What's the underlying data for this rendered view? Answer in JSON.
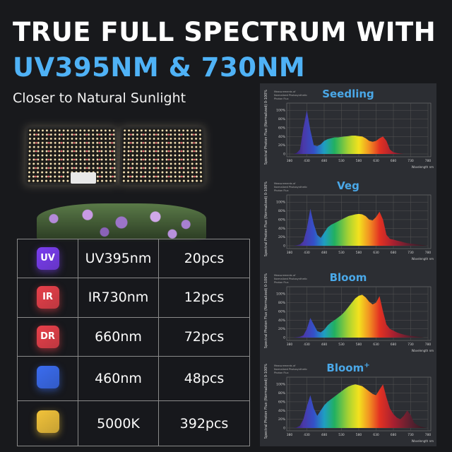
{
  "headline": {
    "line1": "TRUE FULL SPECTRUM WITH",
    "line2": "UV395NM & 730NM",
    "subtitle": "Closer to Natural Sunlight"
  },
  "colors": {
    "accent": "#4fb2f6",
    "chart_title": "#4aa8e8",
    "panel": "#2c2e33"
  },
  "table": [
    {
      "icon": "uv-chip-icon",
      "badge": "UV",
      "color": "#7a3df0",
      "name": "UV395nm",
      "count": "20pcs"
    },
    {
      "icon": "ir-chip-icon",
      "badge": "IR",
      "color": "#e8404a",
      "name": "IR730nm",
      "count": "12pcs"
    },
    {
      "icon": "dr-chip-icon",
      "badge": "DR",
      "color": "#e8404a",
      "name": "660nm",
      "count": "72pcs"
    },
    {
      "icon": "blue-chip-icon",
      "badge": "",
      "color": "#3a6cf0",
      "name": "460nm",
      "count": "48pcs"
    },
    {
      "icon": "white-chip-icon",
      "badge": "",
      "color": "#f2c33a",
      "name": "5000K",
      "count": "392pcs"
    }
  ],
  "chart_data": [
    {
      "type": "area",
      "title": "Seedling",
      "caption": "Measurements of Normalized Photosynthetic Photon Flux",
      "ylabel": "Spectral Photon Flux (Normalized) 0-100%",
      "xlabel": "Wavelength nm",
      "x_start": 380,
      "x_step": 10,
      "xticks": [
        380,
        430,
        480,
        530,
        580,
        630,
        680,
        730,
        780
      ],
      "yticks": [
        "0",
        "20%",
        "40%",
        "60%",
        "80%",
        "100%"
      ],
      "ylim": [
        0,
        110
      ],
      "grid": true,
      "values": [
        0,
        0,
        2,
        10,
        60,
        100,
        55,
        20,
        18,
        22,
        30,
        34,
        36,
        38,
        38,
        39,
        40,
        41,
        42,
        42,
        41,
        40,
        36,
        30,
        28,
        30,
        36,
        40,
        30,
        10,
        4,
        2,
        1,
        0,
        0,
        0,
        0,
        0,
        0,
        0,
        0
      ]
    },
    {
      "type": "area",
      "title": "Veg",
      "caption": "Measurements of Normalized Photosynthetic Photon Flux",
      "ylabel": "Spectral Photon Flux (Normalized) 0-100%",
      "xlabel": "Wavelength nm",
      "x_start": 380,
      "x_step": 10,
      "xticks": [
        380,
        430,
        480,
        530,
        580,
        630,
        680,
        730,
        780
      ],
      "yticks": [
        "0",
        "20%",
        "40%",
        "60%",
        "80%",
        "100%"
      ],
      "ylim": [
        0,
        110
      ],
      "grid": true,
      "values": [
        0,
        0,
        1,
        3,
        10,
        40,
        85,
        50,
        25,
        18,
        30,
        42,
        48,
        52,
        56,
        60,
        64,
        68,
        70,
        72,
        73,
        72,
        68,
        60,
        58,
        66,
        78,
        60,
        25,
        16,
        14,
        12,
        10,
        8,
        6,
        5,
        4,
        3,
        2,
        1,
        0
      ]
    },
    {
      "type": "area",
      "title": "Bloom",
      "caption": "Measurements of Normalized Photosynthetic Photon Flux",
      "ylabel": "Spectral Photon Flux (Normalized) 0-100%",
      "xlabel": "Wavelength nm",
      "x_start": 380,
      "x_step": 10,
      "xticks": [
        380,
        430,
        480,
        530,
        580,
        630,
        680,
        730,
        780
      ],
      "yticks": [
        "0",
        "20%",
        "40%",
        "60%",
        "80%",
        "100%"
      ],
      "ylim": [
        0,
        110
      ],
      "grid": true,
      "values": [
        0,
        0,
        1,
        2,
        5,
        20,
        45,
        30,
        15,
        12,
        18,
        28,
        35,
        40,
        46,
        52,
        60,
        70,
        80,
        90,
        96,
        98,
        92,
        82,
        76,
        80,
        95,
        60,
        30,
        20,
        16,
        12,
        9,
        7,
        5,
        4,
        3,
        2,
        1,
        0,
        0
      ]
    },
    {
      "type": "area",
      "title": "Bloom",
      "title_sup": "+",
      "caption": "Measurements of Normalized Photosynthetic Photon Flux",
      "ylabel": "Spectral Photon Flux (Normalized) 0-100%",
      "xlabel": "Wavelength nm",
      "x_start": 380,
      "x_step": 10,
      "xticks": [
        380,
        430,
        480,
        530,
        580,
        630,
        680,
        730,
        780
      ],
      "yticks": [
        "0",
        "20%",
        "40%",
        "60%",
        "80%",
        "100%"
      ],
      "ylim": [
        0,
        110
      ],
      "grid": true,
      "values": [
        0,
        0,
        1,
        5,
        20,
        50,
        75,
        45,
        28,
        40,
        52,
        60,
        66,
        72,
        78,
        84,
        90,
        95,
        98,
        100,
        98,
        96,
        90,
        84,
        78,
        75,
        88,
        100,
        70,
        45,
        32,
        24,
        20,
        28,
        40,
        30,
        12,
        6,
        3,
        1,
        0
      ]
    }
  ]
}
